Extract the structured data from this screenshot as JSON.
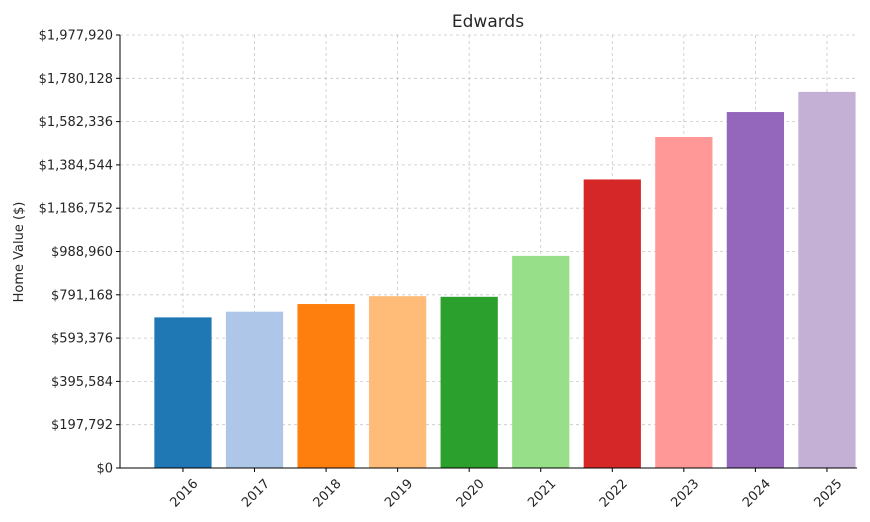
{
  "chart_data": {
    "type": "bar",
    "title": "Edwards",
    "xlabel": "",
    "ylabel": "Home Value ($)",
    "categories": [
      "2016",
      "2017",
      "2018",
      "2019",
      "2020",
      "2021",
      "2022",
      "2023",
      "2024",
      "2025"
    ],
    "values": [
      688000,
      714000,
      749000,
      785000,
      782000,
      969000,
      1318000,
      1512000,
      1626000,
      1718000
    ],
    "colors": [
      "#1f77b4",
      "#aec7e8",
      "#ff7f0e",
      "#ffbb78",
      "#2ca02c",
      "#98df8a",
      "#d62728",
      "#ff9896",
      "#9467bd",
      "#c5b0d5"
    ],
    "yticks": [
      "$0",
      "$197,792",
      "$395,584",
      "$593,376",
      "$791,168",
      "$988,960",
      "$1,186,752",
      "$1,384,544",
      "$1,582,336",
      "$1,780,128",
      "$1,977,920"
    ],
    "ylim": [
      0,
      1977920
    ],
    "grid": true
  }
}
